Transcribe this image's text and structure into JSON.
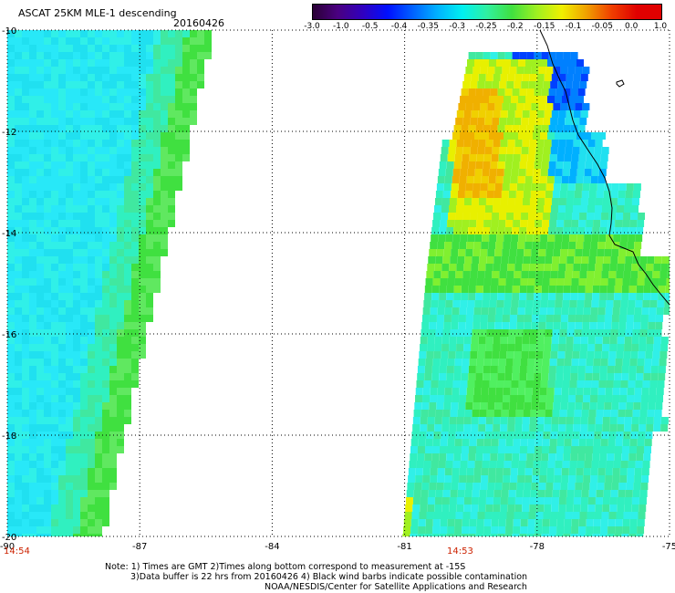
{
  "header": {
    "title": "ASCAT 25KM MLE-1 descending",
    "date": "20160426"
  },
  "colorbar": {
    "labels": [
      "-3.0",
      "-1.0",
      "-0.5",
      "-0.4",
      "-0.35",
      "-0.3",
      "-0.25",
      "-0.2",
      "-0.15",
      "-0.1",
      "-0.05",
      "0.0",
      "1.0"
    ],
    "colors": [
      "#2a0035",
      "#4a0080",
      "#3000c0",
      "#0010ff",
      "#0060ff",
      "#00b0ff",
      "#00f0f0",
      "#30f0a0",
      "#40e040",
      "#a0f020",
      "#f0f000",
      "#f0a000",
      "#f04000",
      "#e00000"
    ]
  },
  "map": {
    "lon_ticks": [
      "-90",
      "-87",
      "-84",
      "-81",
      "-78",
      "-75"
    ],
    "lat_ticks": [
      "-10",
      "-12",
      "-14",
      "-16",
      "-18",
      "-20"
    ],
    "lon_range": [
      -90,
      -75
    ],
    "lat_range": [
      -10,
      -20
    ],
    "grid": "dotted"
  },
  "times": {
    "left": "14:54",
    "right": "14:53"
  },
  "notes": {
    "line1": "Note: 1) Times are GMT 2)Times along bottom correspond to measurement at -15S",
    "line2": "3)Data buffer is 22 hrs from 20160426 4) Black wind barbs indicate possible contamination",
    "line3": "NOAA/NESDIS/Center for Satellite Applications and Research"
  }
}
